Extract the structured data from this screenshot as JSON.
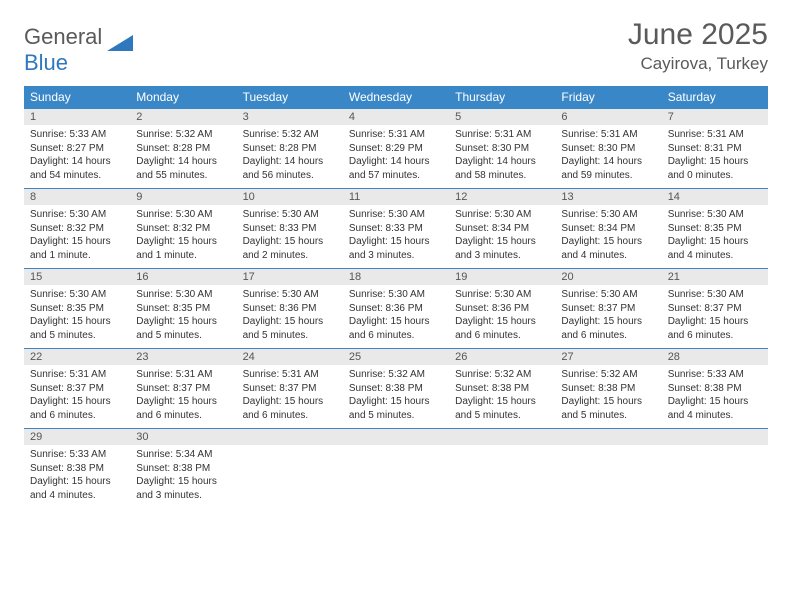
{
  "logo": {
    "word1": "General",
    "word2": "Blue",
    "shape_color": "#2f78bd",
    "text_gray": "#5a5a5a"
  },
  "title": {
    "month": "June 2025",
    "location": "Cayirova, Turkey"
  },
  "colors": {
    "header_bg": "#3a87c8",
    "header_text": "#ffffff",
    "daynum_bg": "#e9e9e9",
    "rule": "#3a87c8",
    "body_text": "#333333"
  },
  "layout": {
    "columns": 7,
    "rows": 5
  },
  "day_headers": [
    "Sunday",
    "Monday",
    "Tuesday",
    "Wednesday",
    "Thursday",
    "Friday",
    "Saturday"
  ],
  "days": [
    {
      "n": "1",
      "sunrise": "5:33 AM",
      "sunset": "8:27 PM",
      "daylight": "14 hours and 54 minutes."
    },
    {
      "n": "2",
      "sunrise": "5:32 AM",
      "sunset": "8:28 PM",
      "daylight": "14 hours and 55 minutes."
    },
    {
      "n": "3",
      "sunrise": "5:32 AM",
      "sunset": "8:28 PM",
      "daylight": "14 hours and 56 minutes."
    },
    {
      "n": "4",
      "sunrise": "5:31 AM",
      "sunset": "8:29 PM",
      "daylight": "14 hours and 57 minutes."
    },
    {
      "n": "5",
      "sunrise": "5:31 AM",
      "sunset": "8:30 PM",
      "daylight": "14 hours and 58 minutes."
    },
    {
      "n": "6",
      "sunrise": "5:31 AM",
      "sunset": "8:30 PM",
      "daylight": "14 hours and 59 minutes."
    },
    {
      "n": "7",
      "sunrise": "5:31 AM",
      "sunset": "8:31 PM",
      "daylight": "15 hours and 0 minutes."
    },
    {
      "n": "8",
      "sunrise": "5:30 AM",
      "sunset": "8:32 PM",
      "daylight": "15 hours and 1 minute."
    },
    {
      "n": "9",
      "sunrise": "5:30 AM",
      "sunset": "8:32 PM",
      "daylight": "15 hours and 1 minute."
    },
    {
      "n": "10",
      "sunrise": "5:30 AM",
      "sunset": "8:33 PM",
      "daylight": "15 hours and 2 minutes."
    },
    {
      "n": "11",
      "sunrise": "5:30 AM",
      "sunset": "8:33 PM",
      "daylight": "15 hours and 3 minutes."
    },
    {
      "n": "12",
      "sunrise": "5:30 AM",
      "sunset": "8:34 PM",
      "daylight": "15 hours and 3 minutes."
    },
    {
      "n": "13",
      "sunrise": "5:30 AM",
      "sunset": "8:34 PM",
      "daylight": "15 hours and 4 minutes."
    },
    {
      "n": "14",
      "sunrise": "5:30 AM",
      "sunset": "8:35 PM",
      "daylight": "15 hours and 4 minutes."
    },
    {
      "n": "15",
      "sunrise": "5:30 AM",
      "sunset": "8:35 PM",
      "daylight": "15 hours and 5 minutes."
    },
    {
      "n": "16",
      "sunrise": "5:30 AM",
      "sunset": "8:35 PM",
      "daylight": "15 hours and 5 minutes."
    },
    {
      "n": "17",
      "sunrise": "5:30 AM",
      "sunset": "8:36 PM",
      "daylight": "15 hours and 5 minutes."
    },
    {
      "n": "18",
      "sunrise": "5:30 AM",
      "sunset": "8:36 PM",
      "daylight": "15 hours and 6 minutes."
    },
    {
      "n": "19",
      "sunrise": "5:30 AM",
      "sunset": "8:36 PM",
      "daylight": "15 hours and 6 minutes."
    },
    {
      "n": "20",
      "sunrise": "5:30 AM",
      "sunset": "8:37 PM",
      "daylight": "15 hours and 6 minutes."
    },
    {
      "n": "21",
      "sunrise": "5:30 AM",
      "sunset": "8:37 PM",
      "daylight": "15 hours and 6 minutes."
    },
    {
      "n": "22",
      "sunrise": "5:31 AM",
      "sunset": "8:37 PM",
      "daylight": "15 hours and 6 minutes."
    },
    {
      "n": "23",
      "sunrise": "5:31 AM",
      "sunset": "8:37 PM",
      "daylight": "15 hours and 6 minutes."
    },
    {
      "n": "24",
      "sunrise": "5:31 AM",
      "sunset": "8:37 PM",
      "daylight": "15 hours and 6 minutes."
    },
    {
      "n": "25",
      "sunrise": "5:32 AM",
      "sunset": "8:38 PM",
      "daylight": "15 hours and 5 minutes."
    },
    {
      "n": "26",
      "sunrise": "5:32 AM",
      "sunset": "8:38 PM",
      "daylight": "15 hours and 5 minutes."
    },
    {
      "n": "27",
      "sunrise": "5:32 AM",
      "sunset": "8:38 PM",
      "daylight": "15 hours and 5 minutes."
    },
    {
      "n": "28",
      "sunrise": "5:33 AM",
      "sunset": "8:38 PM",
      "daylight": "15 hours and 4 minutes."
    },
    {
      "n": "29",
      "sunrise": "5:33 AM",
      "sunset": "8:38 PM",
      "daylight": "15 hours and 4 minutes."
    },
    {
      "n": "30",
      "sunrise": "5:34 AM",
      "sunset": "8:38 PM",
      "daylight": "15 hours and 3 minutes."
    }
  ],
  "labels": {
    "sunrise": "Sunrise:",
    "sunset": "Sunset:",
    "daylight": "Daylight:"
  }
}
